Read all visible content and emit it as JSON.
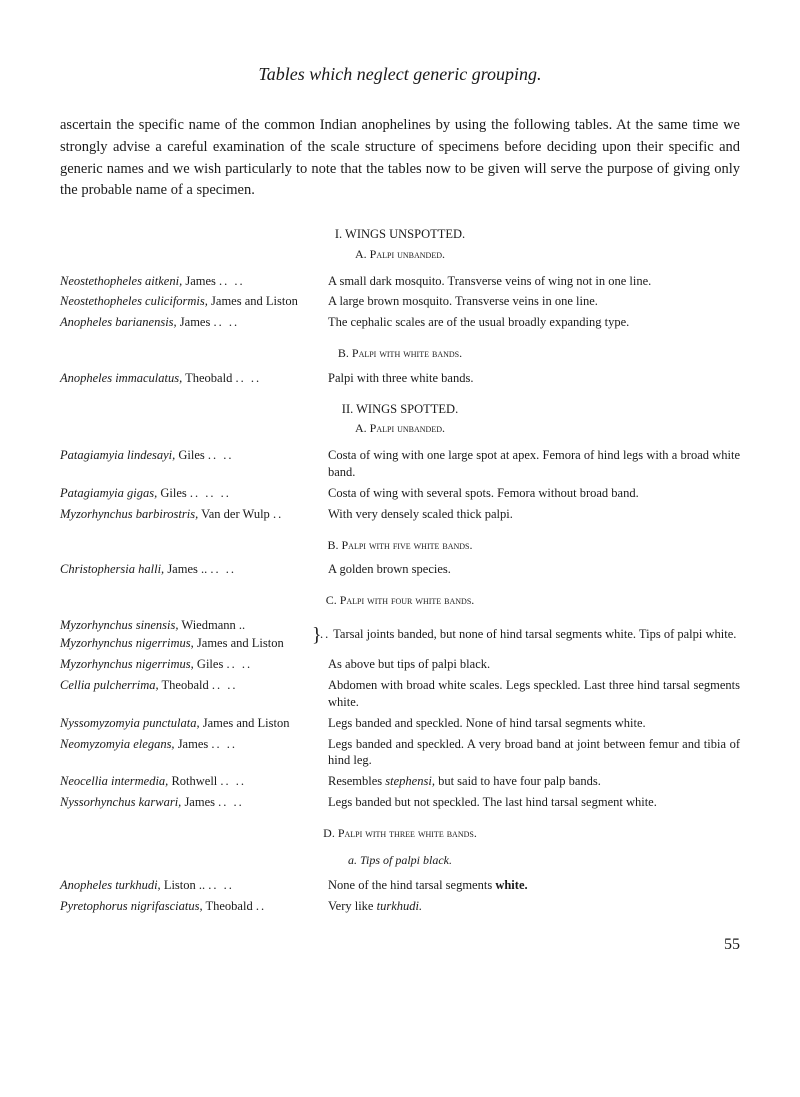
{
  "title": "Tables which neglect generic grouping.",
  "intro": "ascertain the specific name of the common Indian anophelines by using the following tables. At the same time we strongly advise a careful examination of the scale structure of specimens before deciding upon their specific and generic names and we wish particularly to note that the tables now to be given will serve the purpose of giving only the probable name of a specimen.",
  "sec1": "I. WINGS UNSPOTTED.",
  "sec1a": "A. Palpi unbanded.",
  "e1": {
    "name": "Neostethopheles aitkeni,",
    "auth": " James",
    "desc": "A small dark mosquito. Transverse veins of wing not in one line."
  },
  "e2": {
    "name": "Neostethopheles culiciformis,",
    "auth": " James and Liston",
    "desc": "A large brown mosquito. Transverse veins in one line."
  },
  "e3": {
    "name": "Anopheles barianensis,",
    "auth": " James",
    "desc": "The cephalic scales are of the usual broadly expanding type."
  },
  "sec1b": "B. Palpi with white bands.",
  "e4": {
    "name": "Anopheles immaculatus,",
    "auth": " Theobald",
    "desc": "Palpi with three white bands."
  },
  "sec2": "II. WINGS SPOTTED.",
  "sec2a": "A. Palpi unbanded.",
  "e5": {
    "name": "Patagiamyia lindesayi,",
    "auth": " Giles",
    "desc": "Costa of wing with one large spot at apex. Femora of hind legs with a broad white band."
  },
  "e6": {
    "name": "Patagiamyia gigas,",
    "auth": " Giles",
    "desc": "Costa of wing with several spots. Femora without broad band."
  },
  "e7": {
    "name": "Myzorhynchus barbirostris,",
    "auth": " Van der Wulp",
    "desc": "With very densely scaled thick palpi."
  },
  "sec2b": "B. Palpi with five white bands.",
  "e8": {
    "name": "Christophersia halli,",
    "auth": " James ..",
    "desc": "A golden brown species."
  },
  "sec2c": "C. Palpi with four white bands.",
  "e9a": {
    "name": "Myzorhynchus sinensis,",
    "auth": " Wiedmann .."
  },
  "e9b": {
    "name": "Myzorhynchus nigerrimus,",
    "auth": " James and Liston"
  },
  "e9desc": "Tarsal joints banded, but none of hind tarsal segments white. Tips of palpi white.",
  "e10": {
    "name": "Myzorhynchus nigerrimus,",
    "auth": " Giles",
    "desc": "As above but tips of palpi black."
  },
  "e11": {
    "name": "Cellia pulcherrima,",
    "auth": " Theobald",
    "desc": "Abdomen with broad white scales. Legs speckled. Last three hind tarsal segments white."
  },
  "e12": {
    "name": "Nyssomyzomyia punctulata,",
    "auth": " James and Liston",
    "desc": "Legs banded and speckled. None of hind tarsal segments white."
  },
  "e13": {
    "name": "Neomyzomyia elegans,",
    "auth": " James",
    "desc": "Legs banded and speckled. A very broad band at joint between femur and tibia of hind leg."
  },
  "e14": {
    "name": "Neocellia intermedia,",
    "auth": " Rothwell",
    "desc1": "Resembles ",
    "desc_i": "stephensi,",
    "desc2": " but said to have four palp bands."
  },
  "e15": {
    "name": "Nyssorhynchus karwari,",
    "auth": " James",
    "desc": "Legs banded but not speckled. The last hind tarsal segment white."
  },
  "sec2d": "D. Palpi with three white bands.",
  "sec2d_a": "a. Tips of palpi black.",
  "e16": {
    "name": "Anopheles turkhudi,",
    "auth": " Liston ..",
    "desc1": "None of the hind tarsal segments ",
    "desc_b": "white."
  },
  "e17": {
    "name": "Pyretophorus nigrifasciatus,",
    "auth": " Theobald",
    "desc1": "Very like ",
    "desc_i": "turkhudi."
  },
  "page": "55"
}
